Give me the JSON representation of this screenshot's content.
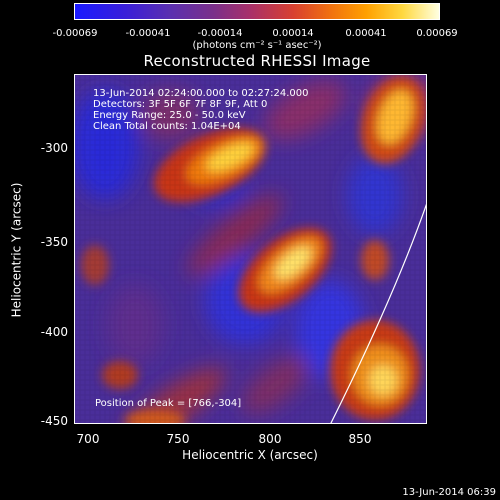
{
  "colorbar": {
    "ticks": [
      "-0.00069",
      "-0.00041",
      "-0.00014",
      "0.00014",
      "0.00041",
      "0.00069"
    ],
    "units": "(photons cm⁻² s⁻¹ asec⁻²)"
  },
  "plot": {
    "title": "Reconstructed RHESSI Image",
    "info_lines": [
      "13-Jun-2014 02:24:00.000 to 02:27:24.000",
      "Detectors: 3F 5F 6F 7F 8F 9F, Att 0",
      "Energy Range: 25.0 - 50.0 keV",
      "Clean     Total counts: 1.04E+04"
    ],
    "peak_label": "Position of Peak = [766,-304]",
    "x_axis": {
      "title": "Heliocentric X (arcsec)",
      "ticks": [
        "700",
        "750",
        "800",
        "850"
      ]
    },
    "y_axis": {
      "title": "Heliocentric Y (arcsec)",
      "ticks": [
        "-300",
        "-350",
        "-400",
        "-450"
      ]
    }
  },
  "footer": {
    "timestamp": "13-Jun-2014 06:39"
  }
}
